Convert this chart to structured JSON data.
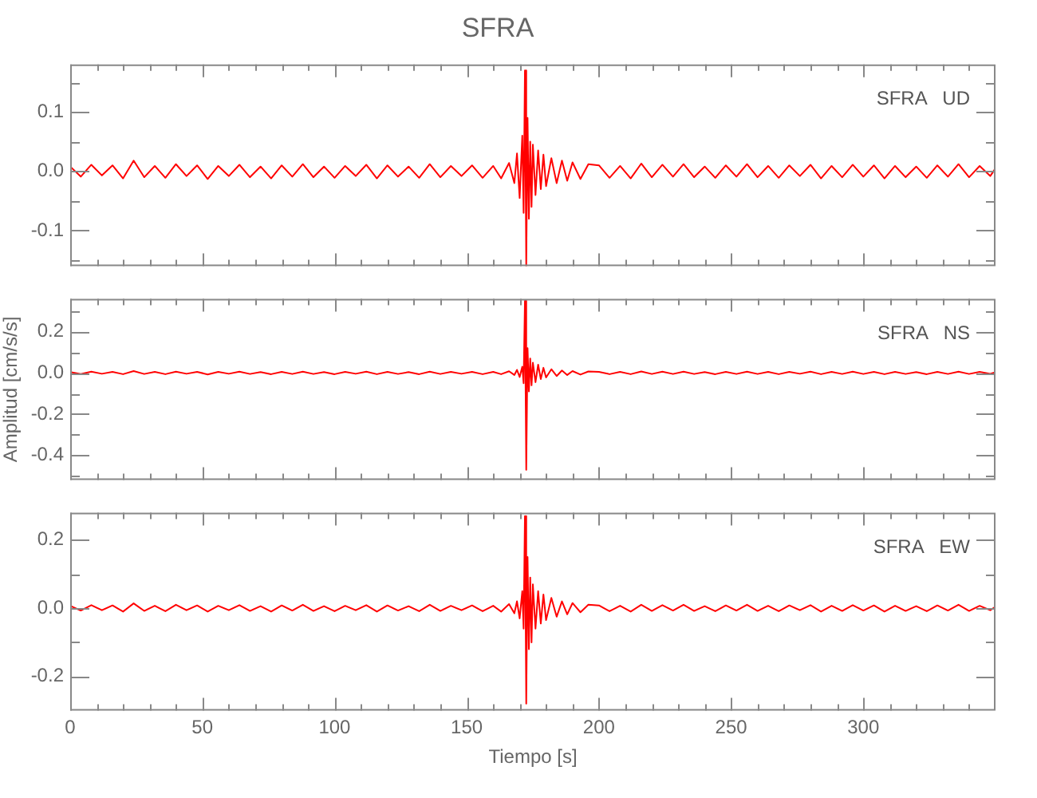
{
  "chart_data": [
    {
      "type": "line",
      "title": "SFRA",
      "annotations": [
        "SFRA   UD"
      ],
      "tick_labels": "y",
      "xlim": [
        0,
        350
      ],
      "ylim": [
        -0.16,
        0.18
      ],
      "xticks": [
        0,
        {
          "value": 10,
          "label": null
        },
        {
          "value": 20,
          "label": null
        },
        {
          "value": 30,
          "label": null
        },
        {
          "value": 40,
          "label": null
        },
        50,
        {
          "value": 60,
          "label": null
        },
        {
          "value": 70,
          "label": null
        },
        {
          "value": 80,
          "label": null
        },
        {
          "value": 90,
          "label": null
        },
        100,
        {
          "value": 110,
          "label": null
        },
        {
          "value": 120,
          "label": null
        },
        {
          "value": 130,
          "label": null
        },
        {
          "value": 140,
          "label": null
        },
        150,
        {
          "value": 160,
          "label": null
        },
        {
          "value": 170,
          "label": null
        },
        {
          "value": 180,
          "label": null
        },
        {
          "value": 190,
          "label": null
        },
        200,
        {
          "value": 210,
          "label": null
        },
        {
          "value": 220,
          "label": null
        },
        {
          "value": 230,
          "label": null
        },
        {
          "value": 240,
          "label": null
        },
        250,
        {
          "value": 260,
          "label": null
        },
        {
          "value": 270,
          "label": null
        },
        {
          "value": 280,
          "label": null
        },
        {
          "value": 290,
          "label": null
        },
        300,
        {
          "value": 310,
          "label": null
        },
        {
          "value": 320,
          "label": null
        },
        {
          "value": 330,
          "label": null
        },
        {
          "value": 340,
          "label": null
        }
      ],
      "yticks": [
        {
          "value": -0.15,
          "label": null
        },
        -0.1,
        {
          "value": -0.05,
          "label": null
        },
        {
          "value": 0,
          "label": "0.0"
        },
        {
          "value": 0.05,
          "label": null
        },
        0.1,
        {
          "value": 0.15,
          "label": null
        }
      ],
      "x": [
        0,
        4,
        8,
        12,
        16,
        20,
        24,
        28,
        32,
        36,
        40,
        44,
        48,
        52,
        56,
        60,
        64,
        68,
        72,
        76,
        80,
        84,
        88,
        92,
        96,
        100,
        104,
        108,
        112,
        116,
        120,
        124,
        128,
        132,
        136,
        140,
        144,
        148,
        152,
        156,
        160,
        163,
        166,
        168,
        169,
        170,
        171,
        171.5,
        172,
        172.5,
        173,
        173.5,
        174,
        174.5,
        175,
        176,
        177,
        178,
        179,
        180,
        182,
        184,
        186,
        188,
        190,
        193,
        196,
        200,
        204,
        208,
        212,
        216,
        220,
        224,
        228,
        232,
        236,
        240,
        244,
        248,
        252,
        256,
        260,
        264,
        268,
        272,
        276,
        280,
        284,
        288,
        292,
        296,
        300,
        304,
        308,
        312,
        316,
        320,
        324,
        328,
        332,
        336,
        340,
        344,
        348,
        350
      ],
      "series": [
        {
          "color": "#ff0000",
          "values": [
            0.008,
            -0.009,
            0.011,
            -0.007,
            0.01,
            -0.012,
            0.018,
            -0.01,
            0.009,
            -0.011,
            0.012,
            -0.008,
            0.01,
            -0.013,
            0.009,
            -0.008,
            0.011,
            -0.01,
            0.008,
            -0.012,
            0.01,
            -0.009,
            0.012,
            -0.01,
            0.008,
            -0.011,
            0.009,
            -0.008,
            0.011,
            -0.012,
            0.01,
            -0.009,
            0.008,
            -0.011,
            0.012,
            -0.01,
            0.009,
            -0.008,
            0.01,
            -0.011,
            0.009,
            -0.012,
            0.014,
            -0.02,
            0.03,
            -0.045,
            0.06,
            -0.07,
            0.17,
            -0.16,
            0.09,
            -0.08,
            0.05,
            -0.06,
            0.045,
            -0.04,
            0.035,
            -0.03,
            0.028,
            -0.025,
            0.022,
            -0.02,
            0.018,
            -0.016,
            0.015,
            -0.013,
            0.012,
            0.01,
            -0.011,
            0.009,
            -0.012,
            0.013,
            -0.01,
            0.011,
            -0.009,
            0.012,
            -0.01,
            0.008,
            -0.011,
            0.01,
            -0.009,
            0.012,
            -0.01,
            0.009,
            -0.011,
            0.01,
            -0.008,
            0.011,
            -0.012,
            0.009,
            -0.01,
            0.011,
            -0.009,
            0.01,
            -0.012,
            0.009,
            -0.01,
            0.008,
            -0.011,
            0.01,
            -0.009,
            0.012,
            -0.01,
            0.009,
            -0.008,
            0.005
          ]
        }
      ]
    },
    {
      "type": "line",
      "ylabel": "Amplitud [cm/s/s]",
      "annotations": [
        "SFRA   NS"
      ],
      "tick_labels": "y",
      "xlim": [
        0,
        350
      ],
      "ylim": [
        -0.52,
        0.36
      ],
      "xticks": [
        0,
        {
          "value": 10,
          "label": null
        },
        {
          "value": 20,
          "label": null
        },
        {
          "value": 30,
          "label": null
        },
        {
          "value": 40,
          "label": null
        },
        50,
        {
          "value": 60,
          "label": null
        },
        {
          "value": 70,
          "label": null
        },
        {
          "value": 80,
          "label": null
        },
        {
          "value": 90,
          "label": null
        },
        100,
        {
          "value": 110,
          "label": null
        },
        {
          "value": 120,
          "label": null
        },
        {
          "value": 130,
          "label": null
        },
        {
          "value": 140,
          "label": null
        },
        150,
        {
          "value": 160,
          "label": null
        },
        {
          "value": 170,
          "label": null
        },
        {
          "value": 180,
          "label": null
        },
        {
          "value": 190,
          "label": null
        },
        200,
        {
          "value": 210,
          "label": null
        },
        {
          "value": 220,
          "label": null
        },
        {
          "value": 230,
          "label": null
        },
        {
          "value": 240,
          "label": null
        },
        250,
        {
          "value": 260,
          "label": null
        },
        {
          "value": 270,
          "label": null
        },
        {
          "value": 280,
          "label": null
        },
        {
          "value": 290,
          "label": null
        },
        300,
        {
          "value": 310,
          "label": null
        },
        {
          "value": 320,
          "label": null
        },
        {
          "value": 330,
          "label": null
        },
        {
          "value": 340,
          "label": null
        }
      ],
      "yticks": [
        {
          "value": -0.5,
          "label": null
        },
        -0.4,
        {
          "value": -0.3,
          "label": null
        },
        -0.2,
        {
          "value": -0.1,
          "label": null
        },
        {
          "value": 0,
          "label": "0.0"
        },
        {
          "value": 0.1,
          "label": null
        },
        0.2,
        {
          "value": 0.3,
          "label": null
        }
      ],
      "x": [
        0,
        4,
        8,
        12,
        16,
        20,
        24,
        28,
        32,
        36,
        40,
        44,
        48,
        52,
        56,
        60,
        64,
        68,
        72,
        76,
        80,
        84,
        88,
        92,
        96,
        100,
        104,
        108,
        112,
        116,
        120,
        124,
        128,
        132,
        136,
        140,
        144,
        148,
        152,
        156,
        160,
        163,
        166,
        168,
        169,
        170,
        171,
        171.5,
        172,
        172.5,
        173,
        173.5,
        174,
        174.5,
        175,
        176,
        177,
        178,
        179,
        180,
        182,
        184,
        186,
        188,
        190,
        193,
        196,
        200,
        204,
        208,
        212,
        216,
        220,
        224,
        228,
        232,
        236,
        240,
        244,
        248,
        252,
        256,
        260,
        264,
        268,
        272,
        276,
        280,
        284,
        288,
        292,
        296,
        300,
        304,
        308,
        312,
        316,
        320,
        324,
        328,
        332,
        336,
        340,
        344,
        348,
        350
      ],
      "series": [
        {
          "color": "#ff0000",
          "values": [
            0.004,
            -0.005,
            0.006,
            -0.004,
            0.005,
            -0.006,
            0.009,
            -0.005,
            0.005,
            -0.006,
            0.006,
            -0.004,
            0.005,
            -0.007,
            0.005,
            -0.004,
            0.006,
            -0.005,
            0.004,
            -0.006,
            0.005,
            -0.005,
            0.006,
            -0.005,
            0.004,
            -0.006,
            0.005,
            -0.004,
            0.006,
            -0.006,
            0.005,
            -0.005,
            0.004,
            -0.006,
            0.006,
            -0.005,
            0.005,
            -0.004,
            0.005,
            -0.006,
            0.005,
            -0.006,
            0.008,
            -0.01,
            0.015,
            -0.02,
            0.03,
            -0.05,
            0.35,
            -0.47,
            0.12,
            -0.09,
            0.07,
            -0.06,
            0.05,
            -0.045,
            0.04,
            -0.03,
            0.025,
            -0.022,
            0.018,
            -0.015,
            0.012,
            -0.01,
            0.009,
            -0.008,
            0.007,
            0.005,
            -0.006,
            0.005,
            -0.006,
            0.007,
            -0.005,
            0.006,
            -0.005,
            0.006,
            -0.005,
            0.004,
            -0.006,
            0.005,
            -0.005,
            0.006,
            -0.005,
            0.005,
            -0.006,
            0.005,
            -0.004,
            0.006,
            -0.006,
            0.005,
            -0.005,
            0.006,
            -0.005,
            0.005,
            -0.006,
            0.005,
            -0.005,
            0.004,
            -0.006,
            0.005,
            -0.005,
            0.006,
            -0.005,
            0.005,
            -0.004,
            0.003
          ]
        }
      ]
    },
    {
      "type": "line",
      "xlabel": "Tiempo [s]",
      "annotations": [
        "SFRA   EW"
      ],
      "xlim": [
        0,
        350
      ],
      "ylim": [
        -0.3,
        0.28
      ],
      "xticks": [
        0,
        {
          "value": 10,
          "label": null
        },
        {
          "value": 20,
          "label": null
        },
        {
          "value": 30,
          "label": null
        },
        {
          "value": 40,
          "label": null
        },
        50,
        {
          "value": 60,
          "label": null
        },
        {
          "value": 70,
          "label": null
        },
        {
          "value": 80,
          "label": null
        },
        {
          "value": 90,
          "label": null
        },
        100,
        {
          "value": 110,
          "label": null
        },
        {
          "value": 120,
          "label": null
        },
        {
          "value": 130,
          "label": null
        },
        {
          "value": 140,
          "label": null
        },
        150,
        {
          "value": 160,
          "label": null
        },
        {
          "value": 170,
          "label": null
        },
        {
          "value": 180,
          "label": null
        },
        {
          "value": 190,
          "label": null
        },
        200,
        {
          "value": 210,
          "label": null
        },
        {
          "value": 220,
          "label": null
        },
        {
          "value": 230,
          "label": null
        },
        {
          "value": 240,
          "label": null
        },
        250,
        {
          "value": 260,
          "label": null
        },
        {
          "value": 270,
          "label": null
        },
        {
          "value": 280,
          "label": null
        },
        {
          "value": 290,
          "label": null
        },
        300,
        {
          "value": 310,
          "label": null
        },
        {
          "value": 320,
          "label": null
        },
        {
          "value": 330,
          "label": null
        },
        {
          "value": 340,
          "label": null
        }
      ],
      "yticks": [
        -0.2,
        {
          "value": -0.1,
          "label": null
        },
        {
          "value": 0,
          "label": "0.0"
        },
        {
          "value": 0.1,
          "label": null
        },
        0.2
      ],
      "x": [
        0,
        4,
        8,
        12,
        16,
        20,
        24,
        28,
        32,
        36,
        40,
        44,
        48,
        52,
        56,
        60,
        64,
        68,
        72,
        76,
        80,
        84,
        88,
        92,
        96,
        100,
        104,
        108,
        112,
        116,
        120,
        124,
        128,
        132,
        136,
        140,
        144,
        148,
        152,
        156,
        160,
        163,
        166,
        168,
        169,
        170,
        171,
        171.5,
        172,
        172.5,
        173,
        173.5,
        174,
        174.5,
        175,
        176,
        177,
        178,
        179,
        180,
        182,
        184,
        186,
        188,
        190,
        193,
        196,
        200,
        204,
        208,
        212,
        216,
        220,
        224,
        228,
        232,
        236,
        240,
        244,
        248,
        252,
        256,
        260,
        264,
        268,
        272,
        276,
        280,
        284,
        288,
        292,
        296,
        300,
        304,
        308,
        312,
        316,
        320,
        324,
        328,
        332,
        336,
        340,
        344,
        348,
        350
      ],
      "series": [
        {
          "color": "#ff0000",
          "values": [
            0.007,
            -0.007,
            0.009,
            -0.006,
            0.008,
            -0.01,
            0.014,
            -0.008,
            0.007,
            -0.009,
            0.01,
            -0.006,
            0.008,
            -0.01,
            0.007,
            -0.006,
            0.009,
            -0.008,
            0.006,
            -0.01,
            0.008,
            -0.007,
            0.01,
            -0.008,
            0.006,
            -0.009,
            0.007,
            -0.006,
            0.009,
            -0.01,
            0.008,
            -0.007,
            0.006,
            -0.009,
            0.01,
            -0.008,
            0.007,
            -0.006,
            0.008,
            -0.009,
            0.007,
            -0.01,
            0.012,
            -0.015,
            0.02,
            -0.03,
            0.05,
            -0.06,
            0.27,
            -0.28,
            0.15,
            -0.12,
            0.09,
            -0.1,
            0.07,
            -0.06,
            0.05,
            -0.045,
            0.04,
            -0.035,
            0.03,
            -0.025,
            0.02,
            -0.018,
            0.015,
            -0.012,
            0.01,
            0.008,
            -0.009,
            0.007,
            -0.01,
            0.01,
            -0.008,
            0.009,
            -0.007,
            0.01,
            -0.008,
            0.006,
            -0.009,
            0.008,
            -0.007,
            0.01,
            -0.008,
            0.007,
            -0.009,
            0.008,
            -0.006,
            0.009,
            -0.01,
            0.007,
            -0.008,
            0.009,
            -0.007,
            0.008,
            -0.01,
            0.007,
            -0.008,
            0.006,
            -0.009,
            0.008,
            -0.007,
            0.01,
            -0.008,
            0.007,
            -0.006,
            0.004
          ]
        }
      ]
    }
  ]
}
